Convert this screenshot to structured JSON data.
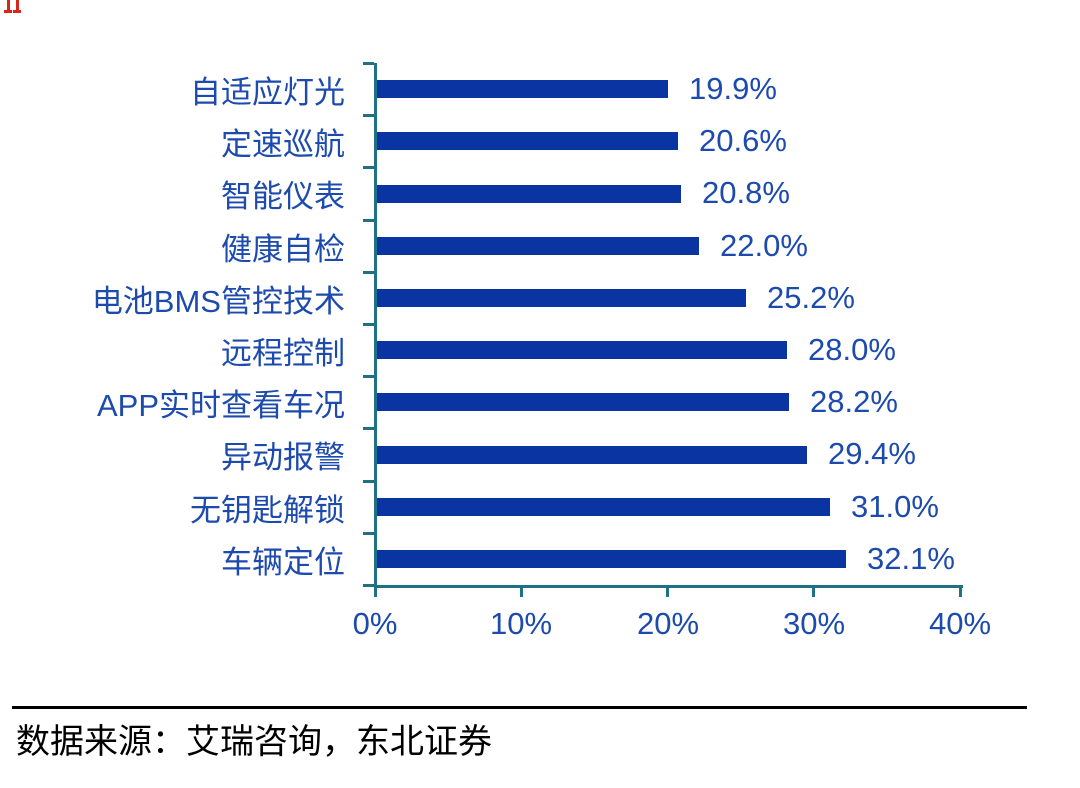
{
  "chart_data": {
    "type": "bar",
    "orientation": "horizontal",
    "categories": [
      "自适应灯光",
      "定速巡航",
      "智能仪表",
      "健康自检",
      "电池BMS管控技术",
      "远程控制",
      "APP实时查看车况",
      "异动报警",
      "无钥匙解锁",
      "车辆定位"
    ],
    "values": [
      19.9,
      20.6,
      20.8,
      22.0,
      25.2,
      28.0,
      28.2,
      29.4,
      31.0,
      32.1
    ],
    "value_labels": [
      "19.9%",
      "20.6%",
      "20.8%",
      "22.0%",
      "25.2%",
      "28.0%",
      "28.2%",
      "29.4%",
      "31.0%",
      "32.1%"
    ],
    "x_ticks": [
      "0%",
      "10%",
      "20%",
      "30%",
      "40%"
    ],
    "x_tick_values": [
      0,
      10,
      20,
      30,
      40
    ],
    "xlim": [
      0,
      40
    ],
    "grid": false,
    "legend": "none",
    "bar_color": "#0a34a2",
    "label_color": "#1c4aad",
    "axis_color": "#1f7183"
  },
  "footer": {
    "source_text": "数据来源：艾瑞咨询，东北证券"
  },
  "decor": {
    "red_fragment_color": "#d4281e"
  }
}
